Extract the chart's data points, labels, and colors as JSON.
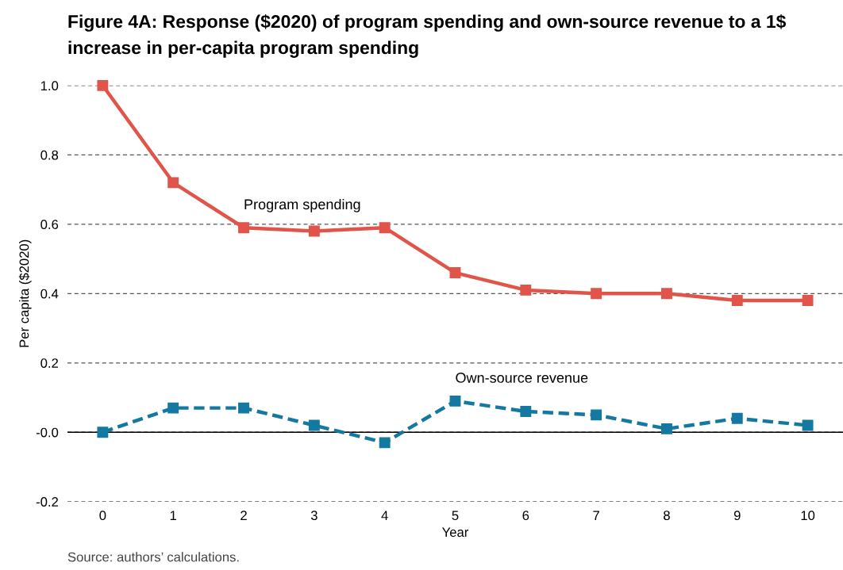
{
  "chart_data": {
    "type": "line",
    "title": "Figure 4A: Response ($2020) of program spending and own-source revenue to a 1$ increase in per-capita program spending",
    "xlabel": "Year",
    "ylabel": "Per capita ($2020)",
    "x": [
      0,
      1,
      2,
      3,
      4,
      5,
      6,
      7,
      8,
      9,
      10
    ],
    "series": [
      {
        "color": "#e0544a",
        "line_style": "solid",
        "values": [
          1.0,
          0.72,
          0.59,
          0.58,
          0.59,
          0.46,
          0.41,
          0.4,
          0.4,
          0.38,
          0.38
        ]
      },
      {
        "color": "#1479a0",
        "line_style": "dashed",
        "values": [
          0.0,
          0.07,
          0.07,
          0.02,
          -0.03,
          0.09,
          0.06,
          0.05,
          0.01,
          0.04,
          0.02
        ]
      }
    ],
    "marker": "square",
    "xlim": [
      -0.5,
      10.5
    ],
    "ylim": [
      -0.2,
      1.0
    ],
    "xticks": [
      0,
      1,
      2,
      3,
      4,
      5,
      6,
      7,
      8,
      9,
      10
    ],
    "yticks": [
      -0.2,
      {
        "value": 0,
        "label": "-0.0"
      },
      0.2,
      0.4,
      0.6,
      0.8,
      {
        "value": 1,
        "label": "1.0"
      }
    ],
    "grid": "y",
    "ref_lines": [
      {
        "axis": "y",
        "value": 0,
        "color": "#000000",
        "line_style": "solid"
      }
    ],
    "annotations": [
      {
        "text": "Program spending",
        "x": 2,
        "y": 0.59
      },
      {
        "text": "Own-source revenue",
        "x": 5,
        "y": 0.09
      },
      "Source: authors’ calculations."
    ]
  }
}
